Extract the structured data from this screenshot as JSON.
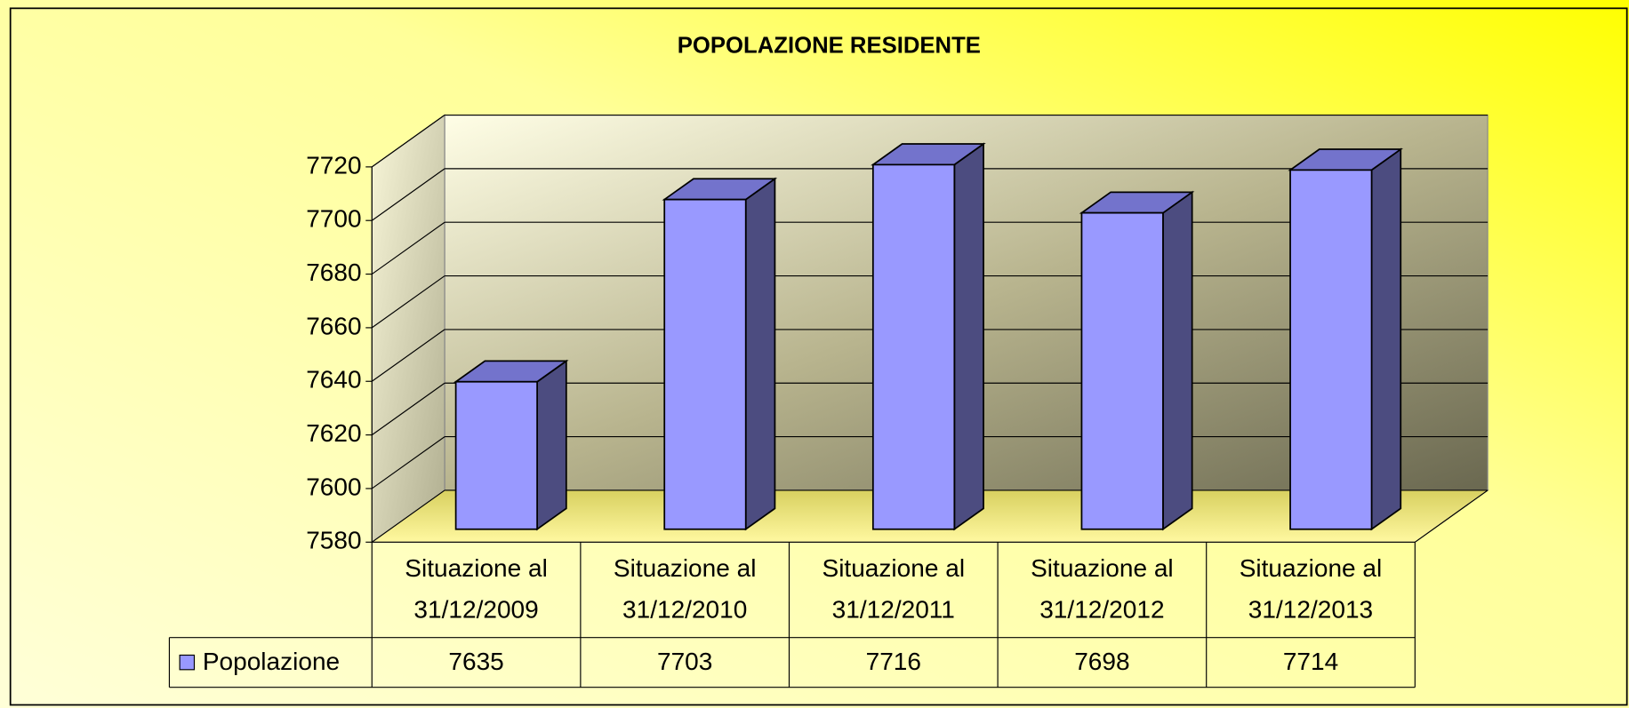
{
  "chart_data": {
    "type": "bar3d",
    "title": "POPOLAZIONE RESIDENTE",
    "categories": [
      "Situazione al 31/12/2009",
      "Situazione al 31/12/2010",
      "Situazione al 31/12/2011",
      "Situazione al 31/12/2012",
      "Situazione al 31/12/2013"
    ],
    "series": [
      {
        "name": "Popolazione",
        "color": "#9999ff",
        "values": [
          7635,
          7703,
          7716,
          7698,
          7714
        ]
      }
    ],
    "ylim": [
      7580,
      7720
    ],
    "yticks": [
      7580,
      7600,
      7620,
      7640,
      7660,
      7680,
      7700,
      7720
    ],
    "grid": true
  }
}
